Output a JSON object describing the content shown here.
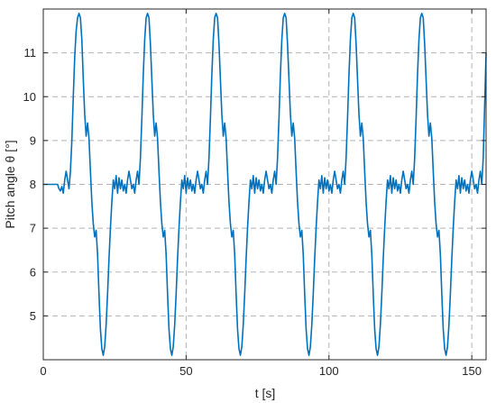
{
  "chart_data": {
    "type": "line",
    "title": "",
    "xlabel": "t [s]",
    "ylabel": "Pitch angle θ [°]",
    "xlim": [
      0,
      155
    ],
    "ylim": [
      4,
      12
    ],
    "x_ticks": [
      0,
      50,
      100,
      150
    ],
    "y_ticks": [
      5,
      6,
      7,
      8,
      9,
      10,
      11
    ],
    "grid": true,
    "legend": "none",
    "line_color": "#0072BD",
    "series": [
      {
        "points": [
          [
            0,
            8.0
          ],
          [
            4,
            8.0
          ],
          [
            5,
            8.0
          ],
          [
            5.5,
            7.9
          ],
          [
            6,
            7.85
          ],
          [
            6.5,
            7.95
          ],
          [
            7,
            7.8
          ],
          [
            7.5,
            8.1
          ],
          [
            8,
            8.3
          ],
          [
            8.5,
            8.1
          ],
          [
            9,
            7.9
          ],
          [
            9.5,
            8.3
          ],
          [
            10,
            9.0
          ],
          [
            10.5,
            10.0
          ],
          [
            11,
            10.9
          ],
          [
            11.5,
            11.5
          ],
          [
            12,
            11.8
          ],
          [
            12.5,
            11.9
          ],
          [
            13,
            11.8
          ],
          [
            13.5,
            11.3
          ],
          [
            14,
            10.4
          ],
          [
            14.5,
            9.6
          ],
          [
            15,
            9.1
          ],
          [
            15.5,
            9.4
          ],
          [
            16,
            9.05
          ],
          [
            16.5,
            8.3
          ],
          [
            17,
            7.6
          ],
          [
            17.5,
            7.1
          ],
          [
            18,
            6.8
          ],
          [
            18.5,
            6.95
          ],
          [
            19,
            6.4
          ],
          [
            19.5,
            5.5
          ],
          [
            20,
            4.7
          ],
          [
            20.5,
            4.25
          ],
          [
            21,
            4.1
          ],
          [
            21.5,
            4.3
          ],
          [
            22,
            4.8
          ],
          [
            22.5,
            5.5
          ],
          [
            23,
            6.3
          ],
          [
            23.5,
            7.0
          ],
          [
            24,
            7.6
          ],
          [
            24.5,
            8.1
          ],
          [
            25,
            7.9
          ],
          [
            25.5,
            8.2
          ],
          [
            26,
            7.8
          ],
          [
            26.5,
            8.15
          ],
          [
            27,
            7.9
          ],
          [
            27.5,
            8.1
          ],
          [
            28,
            7.85
          ],
          [
            28.5,
            8.0
          ],
          [
            29,
            7.8
          ],
          [
            29.5,
            8.1
          ],
          [
            30,
            8.3
          ],
          [
            30.5,
            8.1
          ],
          [
            31,
            7.9
          ],
          [
            31.5,
            8.0
          ],
          [
            32,
            7.8
          ],
          [
            32.5,
            8.1
          ],
          [
            33,
            8.3
          ],
          [
            33.5,
            8.0
          ],
          [
            34,
            8.6
          ],
          [
            34.5,
            9.5
          ],
          [
            35,
            10.5
          ],
          [
            35.5,
            11.3
          ],
          [
            36,
            11.8
          ],
          [
            36.5,
            11.9
          ],
          [
            37,
            11.8
          ],
          [
            37.5,
            11.2
          ],
          [
            38,
            10.4
          ],
          [
            38.5,
            9.6
          ],
          [
            39,
            9.1
          ],
          [
            39.5,
            9.4
          ],
          [
            40,
            9.05
          ],
          [
            40.5,
            8.3
          ],
          [
            41,
            7.6
          ],
          [
            41.5,
            7.1
          ],
          [
            42,
            6.8
          ],
          [
            42.5,
            6.95
          ],
          [
            43,
            6.4
          ],
          [
            43.5,
            5.5
          ],
          [
            44,
            4.7
          ],
          [
            44.5,
            4.25
          ],
          [
            45,
            4.1
          ],
          [
            45.5,
            4.3
          ],
          [
            46,
            4.8
          ],
          [
            46.5,
            5.5
          ],
          [
            47,
            6.3
          ],
          [
            47.5,
            7.0
          ],
          [
            48,
            7.6
          ],
          [
            48.5,
            8.1
          ],
          [
            49,
            7.9
          ],
          [
            49.5,
            8.2
          ],
          [
            50,
            7.8
          ],
          [
            50.5,
            8.15
          ],
          [
            51,
            7.9
          ],
          [
            51.5,
            8.1
          ],
          [
            52,
            7.85
          ],
          [
            52.5,
            8.0
          ],
          [
            53,
            7.8
          ],
          [
            53.5,
            8.1
          ],
          [
            54,
            8.3
          ],
          [
            54.5,
            8.1
          ],
          [
            55,
            7.9
          ],
          [
            55.5,
            8.0
          ],
          [
            56,
            7.8
          ],
          [
            56.5,
            8.1
          ],
          [
            57,
            8.3
          ],
          [
            57.5,
            8.0
          ],
          [
            58,
            8.6
          ],
          [
            58.5,
            9.5
          ],
          [
            59,
            10.5
          ],
          [
            59.5,
            11.3
          ],
          [
            60,
            11.8
          ],
          [
            60.5,
            11.9
          ],
          [
            61,
            11.8
          ],
          [
            61.5,
            11.2
          ],
          [
            62,
            10.4
          ],
          [
            62.5,
            9.6
          ],
          [
            63,
            9.1
          ],
          [
            63.5,
            9.4
          ],
          [
            64,
            9.05
          ],
          [
            64.5,
            8.3
          ],
          [
            65,
            7.6
          ],
          [
            65.5,
            7.1
          ],
          [
            66,
            6.8
          ],
          [
            66.5,
            6.95
          ],
          [
            67,
            6.4
          ],
          [
            67.5,
            5.5
          ],
          [
            68,
            4.7
          ],
          [
            68.5,
            4.25
          ],
          [
            69,
            4.1
          ],
          [
            69.5,
            4.3
          ],
          [
            70,
            4.8
          ],
          [
            70.5,
            5.5
          ],
          [
            71,
            6.3
          ],
          [
            71.5,
            7.0
          ],
          [
            72,
            7.6
          ],
          [
            72.5,
            8.1
          ],
          [
            73,
            7.9
          ],
          [
            73.5,
            8.2
          ],
          [
            74,
            7.8
          ],
          [
            74.5,
            8.15
          ],
          [
            75,
            7.9
          ],
          [
            75.5,
            8.1
          ],
          [
            76,
            7.85
          ],
          [
            76.5,
            8.0
          ],
          [
            77,
            7.8
          ],
          [
            77.5,
            8.1
          ],
          [
            78,
            8.3
          ],
          [
            78.5,
            8.1
          ],
          [
            79,
            7.9
          ],
          [
            79.5,
            8.0
          ],
          [
            80,
            7.8
          ],
          [
            80.5,
            8.1
          ],
          [
            81,
            8.3
          ],
          [
            81.5,
            8.0
          ],
          [
            82,
            8.6
          ],
          [
            82.5,
            9.5
          ],
          [
            83,
            10.5
          ],
          [
            83.5,
            11.3
          ],
          [
            84,
            11.8
          ],
          [
            84.5,
            11.9
          ],
          [
            85,
            11.8
          ],
          [
            85.5,
            11.2
          ],
          [
            86,
            10.4
          ],
          [
            86.5,
            9.6
          ],
          [
            87,
            9.1
          ],
          [
            87.5,
            9.4
          ],
          [
            88,
            9.05
          ],
          [
            88.5,
            8.3
          ],
          [
            89,
            7.6
          ],
          [
            89.5,
            7.1
          ],
          [
            90,
            6.8
          ],
          [
            90.5,
            6.95
          ],
          [
            91,
            6.4
          ],
          [
            91.5,
            5.5
          ],
          [
            92,
            4.7
          ],
          [
            92.5,
            4.25
          ],
          [
            93,
            4.1
          ],
          [
            93.5,
            4.3
          ],
          [
            94,
            4.8
          ],
          [
            94.5,
            5.5
          ],
          [
            95,
            6.3
          ],
          [
            95.5,
            7.0
          ],
          [
            96,
            7.6
          ],
          [
            96.5,
            8.1
          ],
          [
            97,
            7.9
          ],
          [
            97.5,
            8.2
          ],
          [
            98,
            7.8
          ],
          [
            98.5,
            8.15
          ],
          [
            99,
            7.9
          ],
          [
            99.5,
            8.1
          ],
          [
            100,
            7.85
          ],
          [
            100.5,
            8.0
          ],
          [
            101,
            7.8
          ],
          [
            101.5,
            8.1
          ],
          [
            102,
            8.3
          ],
          [
            102.5,
            8.1
          ],
          [
            103,
            7.9
          ],
          [
            103.5,
            8.0
          ],
          [
            104,
            7.8
          ],
          [
            104.5,
            8.1
          ],
          [
            105,
            8.3
          ],
          [
            105.5,
            8.0
          ],
          [
            106,
            8.6
          ],
          [
            106.5,
            9.5
          ],
          [
            107,
            10.5
          ],
          [
            107.5,
            11.3
          ],
          [
            108,
            11.8
          ],
          [
            108.5,
            11.9
          ],
          [
            109,
            11.8
          ],
          [
            109.5,
            11.2
          ],
          [
            110,
            10.4
          ],
          [
            110.5,
            9.6
          ],
          [
            111,
            9.1
          ],
          [
            111.5,
            9.4
          ],
          [
            112,
            9.05
          ],
          [
            112.5,
            8.3
          ],
          [
            113,
            7.6
          ],
          [
            113.5,
            7.1
          ],
          [
            114,
            6.8
          ],
          [
            114.5,
            6.95
          ],
          [
            115,
            6.4
          ],
          [
            115.5,
            5.5
          ],
          [
            116,
            4.7
          ],
          [
            116.5,
            4.25
          ],
          [
            117,
            4.1
          ],
          [
            117.5,
            4.3
          ],
          [
            118,
            4.8
          ],
          [
            118.5,
            5.5
          ],
          [
            119,
            6.3
          ],
          [
            119.5,
            7.0
          ],
          [
            120,
            7.6
          ],
          [
            120.5,
            8.1
          ],
          [
            121,
            7.9
          ],
          [
            121.5,
            8.2
          ],
          [
            122,
            7.8
          ],
          [
            122.5,
            8.15
          ],
          [
            123,
            7.9
          ],
          [
            123.5,
            8.1
          ],
          [
            124,
            7.85
          ],
          [
            124.5,
            8.0
          ],
          [
            125,
            7.8
          ],
          [
            125.5,
            8.1
          ],
          [
            126,
            8.3
          ],
          [
            126.5,
            8.1
          ],
          [
            127,
            7.9
          ],
          [
            127.5,
            8.0
          ],
          [
            128,
            7.8
          ],
          [
            128.5,
            8.1
          ],
          [
            129,
            8.3
          ],
          [
            129.5,
            8.0
          ],
          [
            130,
            8.6
          ],
          [
            130.5,
            9.5
          ],
          [
            131,
            10.5
          ],
          [
            131.5,
            11.3
          ],
          [
            132,
            11.8
          ],
          [
            132.5,
            11.9
          ],
          [
            133,
            11.8
          ],
          [
            133.5,
            11.2
          ],
          [
            134,
            10.4
          ],
          [
            134.5,
            9.6
          ],
          [
            135,
            9.1
          ],
          [
            135.5,
            9.4
          ],
          [
            136,
            9.05
          ],
          [
            136.5,
            8.3
          ],
          [
            137,
            7.6
          ],
          [
            137.5,
            7.1
          ],
          [
            138,
            6.8
          ],
          [
            138.5,
            6.95
          ],
          [
            139,
            6.4
          ],
          [
            139.5,
            5.5
          ],
          [
            140,
            4.7
          ],
          [
            140.5,
            4.25
          ],
          [
            141,
            4.1
          ],
          [
            141.5,
            4.3
          ],
          [
            142,
            4.8
          ],
          [
            142.5,
            5.5
          ],
          [
            143,
            6.3
          ],
          [
            143.5,
            7.0
          ],
          [
            144,
            7.6
          ],
          [
            144.5,
            8.1
          ],
          [
            145,
            7.9
          ],
          [
            145.5,
            8.2
          ],
          [
            146,
            7.8
          ],
          [
            146.5,
            8.15
          ],
          [
            147,
            7.9
          ],
          [
            147.5,
            8.1
          ],
          [
            148,
            7.85
          ],
          [
            148.5,
            8.0
          ],
          [
            149,
            7.8
          ],
          [
            149.5,
            8.1
          ],
          [
            150,
            8.3
          ],
          [
            150.5,
            8.1
          ],
          [
            151,
            7.9
          ],
          [
            151.5,
            8.0
          ],
          [
            152,
            7.8
          ],
          [
            152.5,
            8.1
          ],
          [
            153,
            8.3
          ],
          [
            153.5,
            8.0
          ],
          [
            154,
            8.6
          ],
          [
            154.5,
            9.8
          ],
          [
            155,
            11.0
          ]
        ]
      }
    ]
  }
}
